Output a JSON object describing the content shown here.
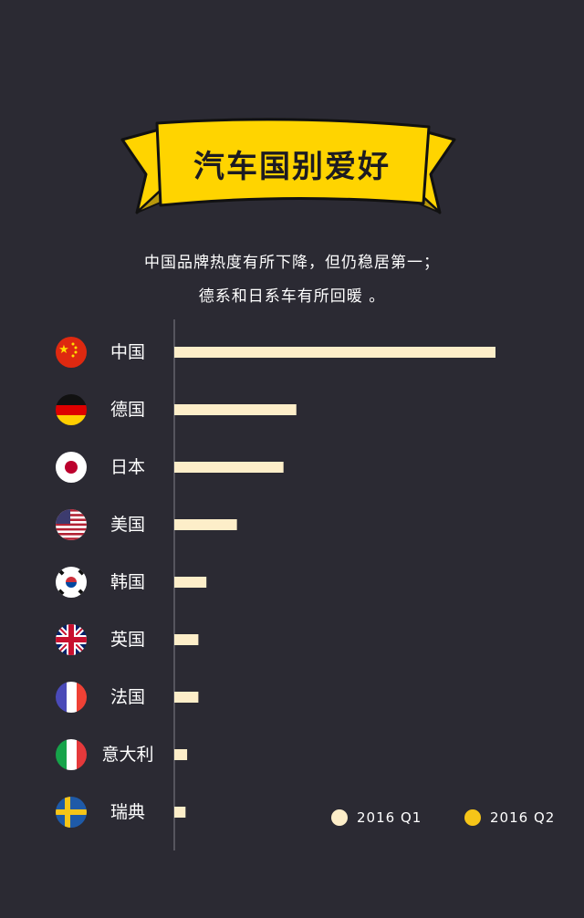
{
  "title": "汽车国别爱好",
  "subtitle_lines": [
    "中国品牌热度有所下降，但仍稳居第一；",
    "德系和日系车有所回暖 。"
  ],
  "colors": {
    "background": "#2b2a33",
    "banner": "#ffd400",
    "q1": "#fdeec9",
    "q2": "#f6c518"
  },
  "chart_data": {
    "type": "bar",
    "orientation": "horizontal",
    "categories": [
      "中国",
      "德国",
      "日本",
      "美国",
      "韩国",
      "英国",
      "法国",
      "意大利",
      "瑞典"
    ],
    "flag_icons": [
      "china-flag-icon",
      "germany-flag-icon",
      "japan-flag-icon",
      "usa-flag-icon",
      "korea-flag-icon",
      "uk-flag-icon",
      "france-flag-icon",
      "italy-flag-icon",
      "sweden-flag-icon"
    ],
    "series": [
      {
        "name": "2016 Q1",
        "values": [
          100,
          38,
          34,
          19.5,
          10,
          7.5,
          7.5,
          4,
          3.5
        ]
      }
    ],
    "legend": [
      {
        "name": "2016 Q1",
        "color": "#fdeec9"
      },
      {
        "name": "2016 Q2",
        "color": "#f6c518"
      }
    ],
    "legend_position": "bottom-right",
    "grid": false,
    "xlim": [
      0,
      100
    ]
  }
}
